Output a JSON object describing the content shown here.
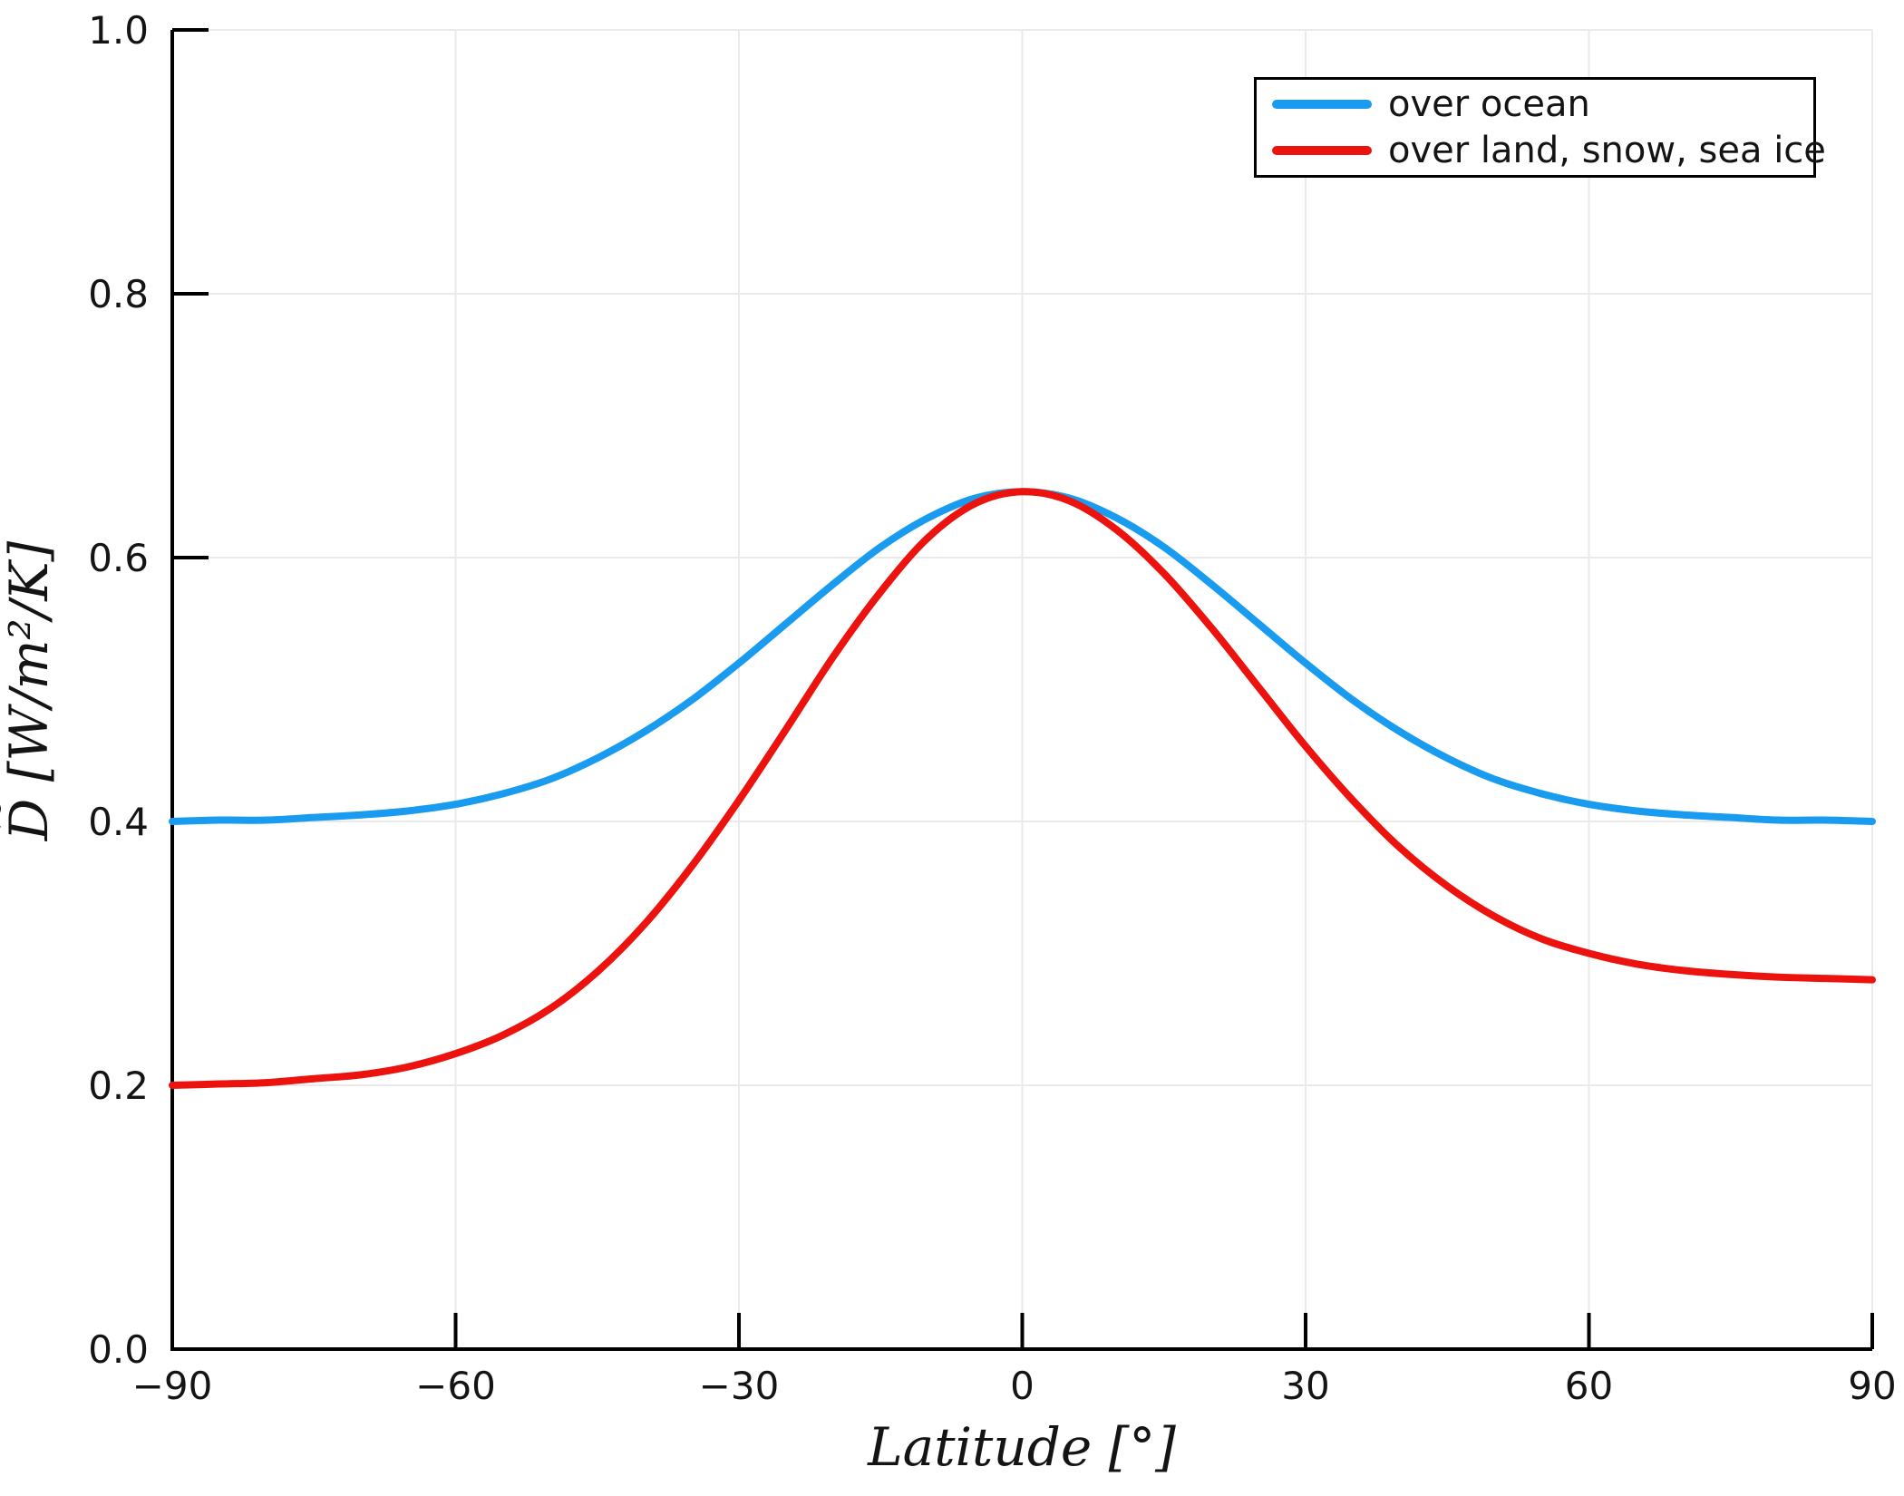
{
  "chart_data": {
    "type": "line",
    "title": "",
    "xlabel": "Latitude [°]",
    "ylabel": "D̃ [W/m²/K]",
    "ylabel_render": {
      "text": "D [W/m²/K]",
      "tilde": "~"
    },
    "xlim": [
      -90,
      90
    ],
    "ylim": [
      0.0,
      1.0
    ],
    "grid": true,
    "legend_position": "top-right",
    "x_ticks": {
      "values": [
        -90,
        -60,
        -30,
        0,
        30,
        60,
        90
      ],
      "labels": [
        "−90",
        "−60",
        "−30",
        "0",
        "30",
        "60",
        "90"
      ]
    },
    "y_ticks": {
      "values": [
        0.0,
        0.2,
        0.4,
        0.6,
        0.8,
        1.0
      ],
      "labels": [
        "0.0",
        "0.2",
        "0.4",
        "0.6",
        "0.8",
        "1.0"
      ]
    },
    "x": [
      -90,
      -85,
      -80,
      -75,
      -70,
      -65,
      -60,
      -55,
      -50,
      -45,
      -40,
      -35,
      -30,
      -25,
      -20,
      -15,
      -10,
      -5,
      0,
      5,
      10,
      15,
      20,
      25,
      30,
      35,
      40,
      45,
      50,
      55,
      60,
      65,
      70,
      75,
      80,
      85,
      90
    ],
    "series": [
      {
        "name": "over ocean",
        "color": "#199BF0",
        "values": [
          0.4,
          0.401,
          0.401,
          0.403,
          0.405,
          0.408,
          0.413,
          0.421,
          0.432,
          0.448,
          0.468,
          0.492,
          0.52,
          0.55,
          0.58,
          0.608,
          0.63,
          0.645,
          0.65,
          0.645,
          0.63,
          0.608,
          0.58,
          0.55,
          0.52,
          0.492,
          0.468,
          0.448,
          0.432,
          0.421,
          0.413,
          0.408,
          0.405,
          0.403,
          0.401,
          0.401,
          0.4
        ]
      },
      {
        "name": "over land, snow, sea ice",
        "color": "#EC130E",
        "values": [
          0.2,
          0.201,
          0.202,
          0.205,
          0.208,
          0.214,
          0.224,
          0.238,
          0.258,
          0.286,
          0.322,
          0.366,
          0.416,
          0.47,
          0.525,
          0.574,
          0.615,
          0.641,
          0.65,
          0.643,
          0.621,
          0.588,
          0.547,
          0.502,
          0.457,
          0.416,
          0.38,
          0.351,
          0.328,
          0.311,
          0.3,
          0.292,
          0.287,
          0.284,
          0.282,
          0.281,
          0.28
        ]
      }
    ],
    "style": {
      "grid_color": "#EAEAEA",
      "spine_color": "#000000",
      "text_color": "#141414",
      "line_width": 8,
      "legend_border_color": "#000000"
    }
  }
}
